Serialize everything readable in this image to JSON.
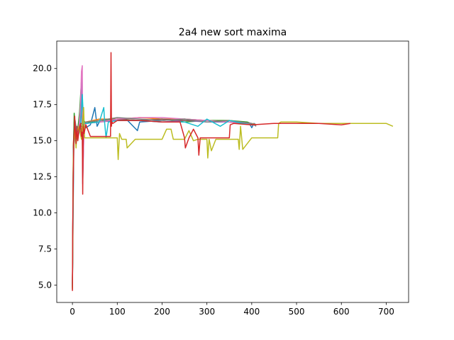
{
  "chart_data": {
    "type": "line",
    "title": "2a4 new sort maxima",
    "xlabel": "",
    "ylabel": "",
    "xlim": [
      -35,
      750
    ],
    "ylim": [
      3.8,
      21.9
    ],
    "xticks": [
      0,
      100,
      200,
      300,
      400,
      500,
      600,
      700
    ],
    "yticks": [
      5.0,
      7.5,
      10.0,
      12.5,
      15.0,
      17.5,
      20.0
    ],
    "xtick_labels": [
      "0",
      "100",
      "200",
      "300",
      "400",
      "500",
      "600",
      "700"
    ],
    "ytick_labels": [
      "5.0",
      "7.5",
      "10.0",
      "12.5",
      "15.0",
      "17.5",
      "20.0"
    ],
    "grid": false,
    "legend": "none",
    "series": [
      {
        "color": "#1f77b4",
        "x": [
          0,
          2,
          4,
          8,
          12,
          18,
          22,
          25,
          30,
          40,
          50,
          55,
          60,
          80,
          100,
          120,
          145,
          150,
          200,
          250,
          300,
          350,
          380,
          395,
          400,
          405,
          410
        ],
        "y": [
          4.7,
          14.5,
          16.3,
          14.8,
          15.6,
          15.9,
          15.3,
          16.1,
          15.9,
          16.1,
          17.3,
          16.0,
          16.3,
          16.4,
          16.4,
          16.5,
          15.7,
          16.3,
          16.4,
          16.5,
          16.4,
          16.3,
          16.2,
          16.2,
          15.9,
          16.2,
          16.1
        ]
      },
      {
        "color": "#ff7f0e",
        "x": [
          0,
          2,
          5,
          10,
          15,
          20,
          25,
          30,
          60,
          100,
          150,
          200,
          250,
          300,
          350,
          380,
          400,
          410
        ],
        "y": [
          4.8,
          14.8,
          16.5,
          15.2,
          16.0,
          15.8,
          16.2,
          16.3,
          16.5,
          16.5,
          16.6,
          16.5,
          16.5,
          16.4,
          16.4,
          16.2,
          16.2,
          16.1
        ]
      },
      {
        "color": "#2ca02c",
        "x": [
          0,
          2,
          4,
          8,
          12,
          16,
          20,
          22,
          25,
          30,
          40,
          60,
          100,
          150,
          200,
          250,
          300,
          350,
          390,
          405
        ],
        "y": [
          4.9,
          14.0,
          16.9,
          15.1,
          15.8,
          17.0,
          19.1,
          15.5,
          16.4,
          16.2,
          16.3,
          16.4,
          16.5,
          16.4,
          16.5,
          16.3,
          16.4,
          16.4,
          16.3,
          16.1
        ]
      },
      {
        "color": "#9467bd",
        "x": [
          0,
          3,
          6,
          10,
          14,
          18,
          21,
          23,
          26,
          30,
          60,
          100,
          150,
          200,
          250,
          300,
          350,
          400
        ],
        "y": [
          5.0,
          15.0,
          16.2,
          15.6,
          16.0,
          16.5,
          19.6,
          12.0,
          16.1,
          16.2,
          16.3,
          16.4,
          16.4,
          16.3,
          16.4,
          16.3,
          16.3,
          16.1
        ]
      },
      {
        "color": "#8c564b",
        "x": [
          0,
          2,
          5,
          10,
          15,
          20,
          25,
          30,
          60,
          100,
          150,
          200,
          250,
          300,
          350,
          400
        ],
        "y": [
          5.1,
          14.6,
          15.9,
          15.4,
          16.0,
          16.2,
          16.1,
          16.2,
          16.3,
          16.5,
          16.4,
          16.5,
          16.4,
          16.4,
          16.3,
          16.1
        ]
      },
      {
        "color": "#e377c2",
        "x": [
          0,
          2,
          5,
          10,
          15,
          18,
          20,
          22,
          23,
          26,
          30,
          60,
          100,
          150,
          200,
          250,
          300,
          350,
          400
        ],
        "y": [
          5.2,
          14.2,
          15.8,
          15.3,
          16.1,
          17.5,
          19.8,
          20.2,
          12.5,
          16.0,
          16.2,
          16.3,
          16.5,
          16.6,
          16.6,
          16.5,
          16.4,
          16.3,
          16.2
        ]
      },
      {
        "color": "#7f7f7f",
        "x": [
          0,
          2,
          6,
          10,
          14,
          20,
          24,
          30,
          60,
          100,
          150,
          200,
          250,
          300,
          350,
          400,
          410
        ],
        "y": [
          4.8,
          14.3,
          16.4,
          15.5,
          15.9,
          16.0,
          16.2,
          16.3,
          16.4,
          16.6,
          16.5,
          16.4,
          16.5,
          16.3,
          16.4,
          16.2,
          16.0
        ]
      },
      {
        "color": "#17becf",
        "x": [
          0,
          3,
          7,
          12,
          18,
          22,
          25,
          30,
          60,
          70,
          72,
          75,
          80,
          100,
          150,
          200,
          250,
          280,
          300,
          330,
          350,
          380,
          400
        ],
        "y": [
          4.9,
          14.6,
          16.0,
          15.2,
          16.0,
          18.2,
          16.2,
          16.2,
          16.3,
          17.3,
          16.2,
          15.2,
          16.3,
          16.4,
          16.4,
          16.3,
          16.3,
          16.0,
          16.5,
          16.0,
          16.4,
          16.2,
          16.1
        ]
      },
      {
        "color": "#bcbd22",
        "x": [
          0,
          2,
          5,
          8,
          10,
          15,
          20,
          25,
          27,
          30,
          60,
          100,
          102,
          105,
          110,
          120,
          122,
          140,
          160,
          200,
          210,
          220,
          225,
          250,
          260,
          270,
          280,
          300,
          302,
          305,
          310,
          320,
          370,
          372,
          375,
          380,
          400,
          420,
          458,
          460,
          465,
          500,
          550,
          600,
          650,
          700,
          715
        ],
        "y": [
          4.7,
          13.9,
          15.9,
          14.5,
          15.6,
          16.0,
          15.1,
          17.3,
          15.2,
          15.2,
          15.2,
          15.2,
          13.7,
          15.5,
          15.1,
          15.1,
          14.5,
          15.1,
          15.1,
          15.1,
          15.8,
          15.8,
          15.1,
          15.1,
          15.7,
          15.0,
          15.1,
          15.1,
          13.8,
          15.1,
          14.3,
          15.1,
          15.1,
          14.4,
          16.0,
          14.4,
          15.2,
          15.2,
          15.2,
          16.2,
          16.3,
          16.3,
          16.2,
          16.2,
          16.2,
          16.2,
          16.0
        ]
      },
      {
        "color": "#d62728",
        "x": [
          0,
          1,
          3,
          5,
          8,
          10,
          12,
          15,
          18,
          20,
          22,
          23,
          24,
          26,
          30,
          40,
          85,
          86,
          87,
          88,
          90,
          100,
          150,
          200,
          240,
          250,
          252,
          260,
          270,
          280,
          282,
          285,
          300,
          340,
          350,
          352,
          360,
          400,
          450,
          500,
          550,
          600,
          620
        ],
        "y": [
          4.6,
          10.0,
          14.7,
          16.7,
          14.8,
          16.0,
          15.0,
          15.8,
          16.2,
          15.3,
          15.6,
          11.3,
          16.0,
          15.5,
          16.1,
          15.3,
          15.3,
          21.1,
          16.0,
          16.3,
          16.2,
          16.4,
          16.4,
          16.3,
          16.3,
          15.2,
          14.5,
          15.2,
          15.8,
          15.2,
          14.0,
          15.2,
          15.2,
          15.2,
          15.2,
          16.1,
          16.2,
          16.1,
          16.2,
          16.2,
          16.2,
          16.1,
          16.2
        ]
      }
    ]
  }
}
